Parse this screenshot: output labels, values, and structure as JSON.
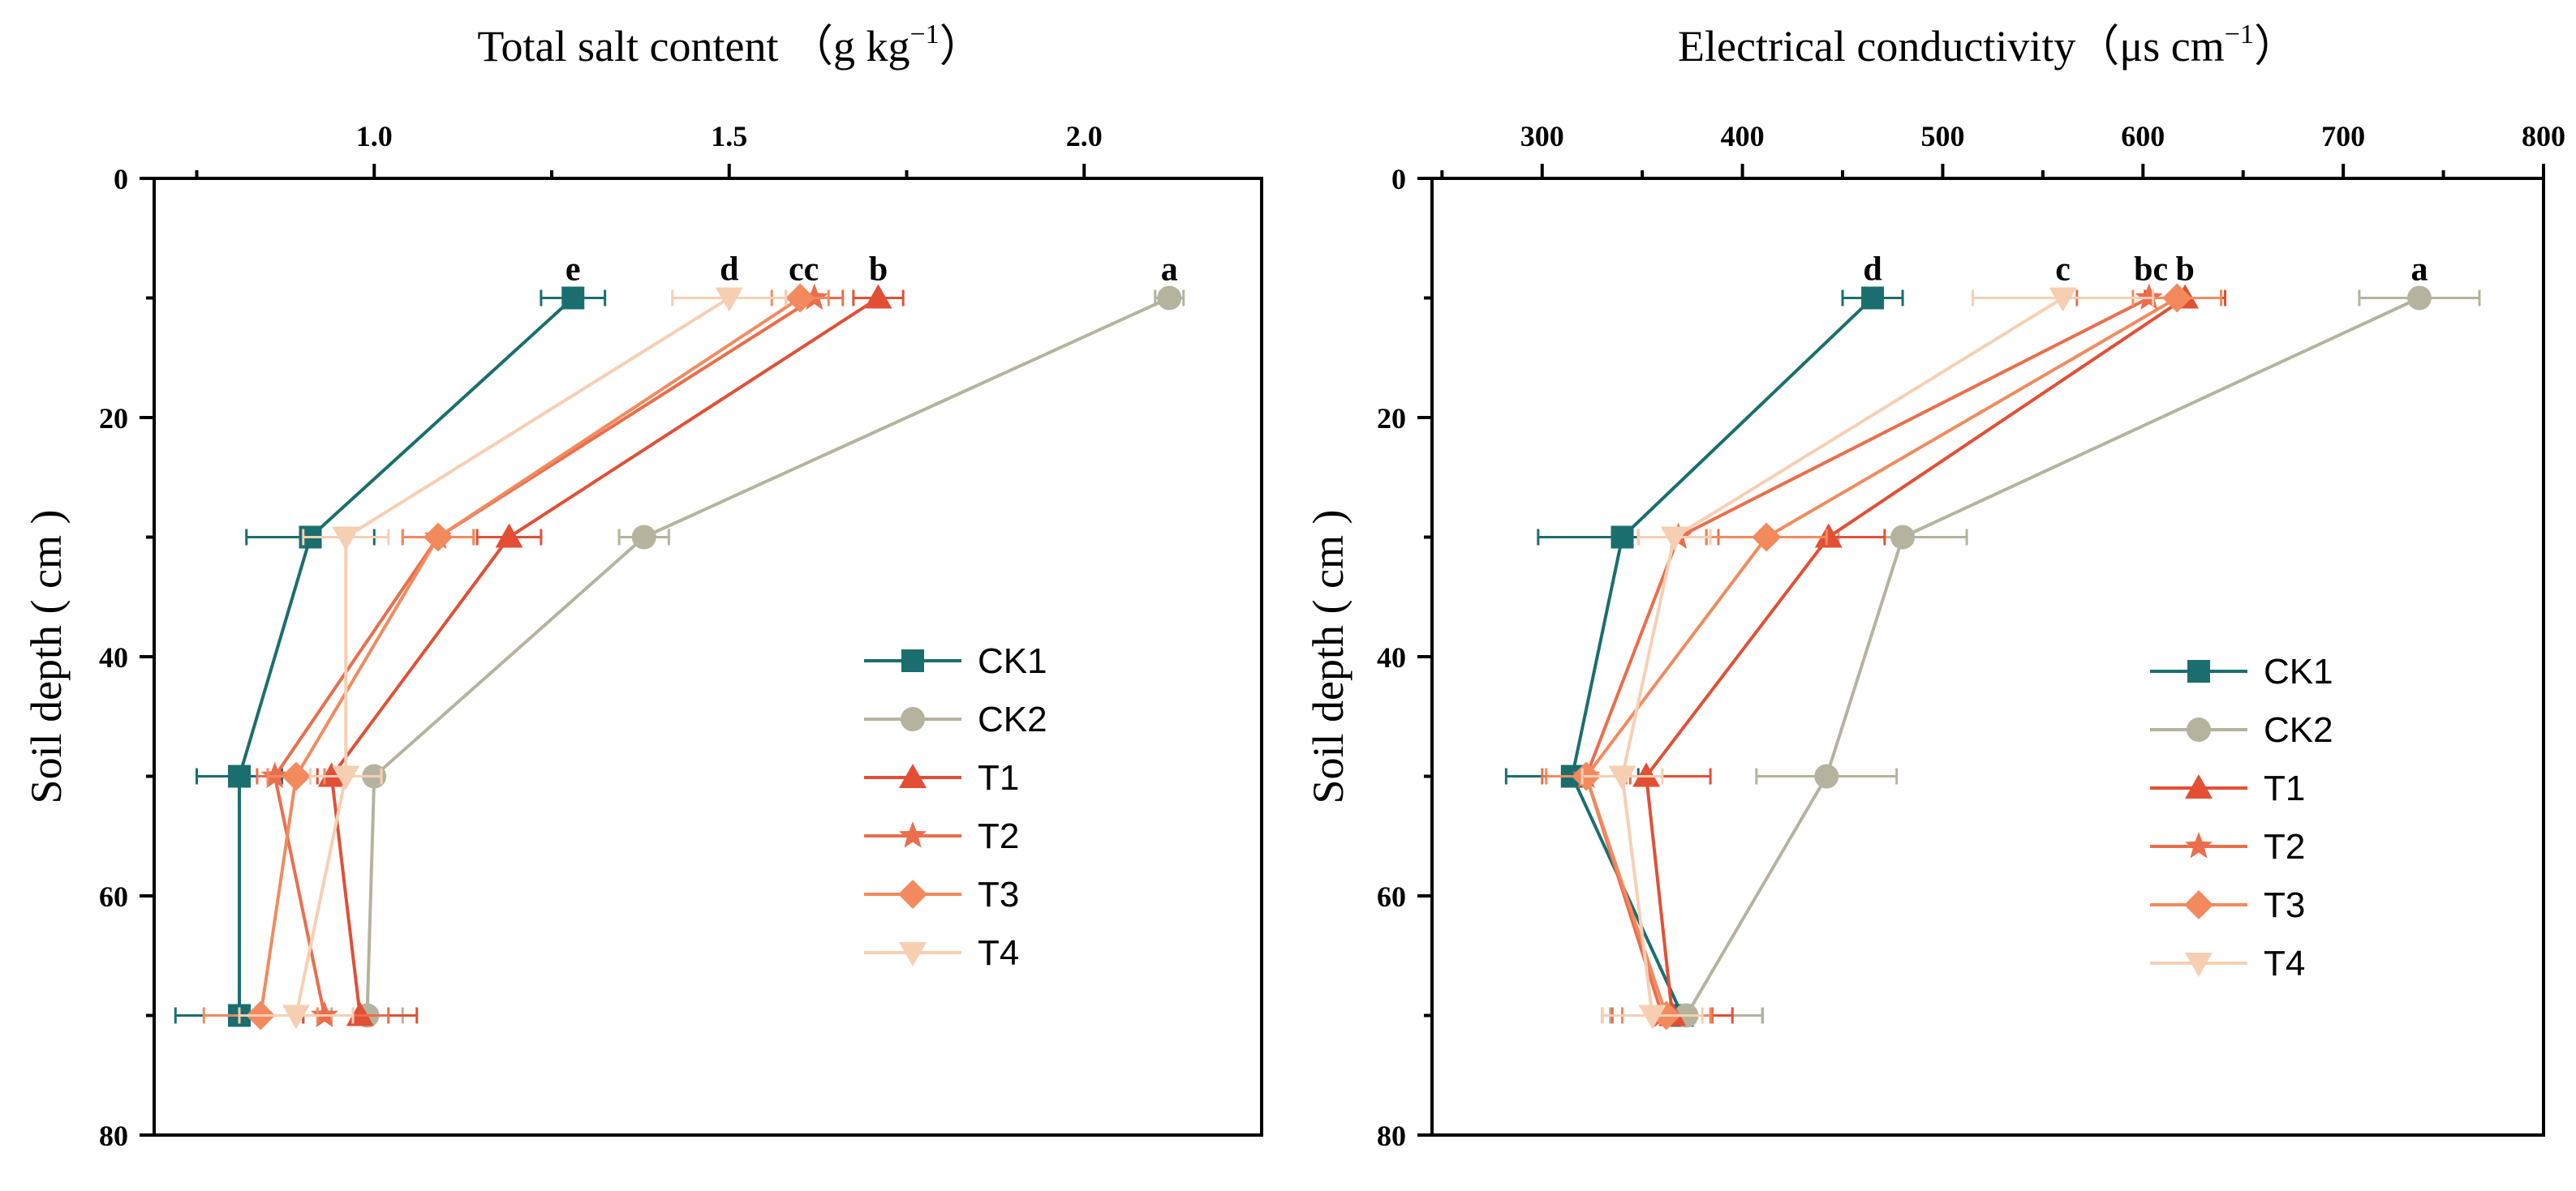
{
  "colors": {
    "CK1": "#1a6e6e",
    "CK2": "#b5b39d",
    "T1": "#e24f35",
    "T2": "#ec6d4b",
    "T3": "#f28a5e",
    "T4": "#f6cfb3"
  },
  "chart_data": [
    {
      "type": "line",
      "title": "Total salt content （g kg",
      "title_sup": "−1",
      "title_end": "）",
      "ylabel": "Soil depth ( cm )",
      "xlim": [
        0.69,
        2.25
      ],
      "ylim": [
        0,
        80
      ],
      "x_major_ticks": [
        1.0,
        1.5,
        2.0
      ],
      "x_tick_labels": [
        "1.0",
        "1.5",
        "2.0"
      ],
      "x_minor_ticks": [
        0.75,
        1.25,
        1.75
      ],
      "y_ticks": [
        0,
        20,
        40,
        60,
        80
      ],
      "y_tick_labels": [
        "0",
        "20",
        "40",
        "60",
        "80"
      ],
      "depths": [
        10,
        30,
        50,
        70
      ],
      "series": [
        {
          "name": "CK1",
          "marker": "square",
          "values": [
            1.28,
            0.91,
            0.81,
            0.81
          ],
          "errors": [
            0.045,
            0.09,
            0.06,
            0.09
          ]
        },
        {
          "name": "CK2",
          "marker": "circle",
          "values": [
            2.12,
            1.38,
            1.0,
            0.99
          ],
          "errors": [
            0.02,
            0.035,
            0.01,
            0.05
          ]
        },
        {
          "name": "T1",
          "marker": "triangle-up",
          "values": [
            1.71,
            1.19,
            0.94,
            0.98
          ],
          "errors": [
            0.035,
            0.045,
            0.02,
            0.08
          ]
        },
        {
          "name": "T2",
          "marker": "star",
          "values": [
            1.62,
            1.09,
            0.86,
            0.93
          ],
          "errors": [
            0.04,
            0.05,
            0.025,
            0.09
          ]
        },
        {
          "name": "T3",
          "marker": "diamond",
          "values": [
            1.6,
            1.09,
            0.89,
            0.84
          ],
          "errors": [
            0.04,
            0.05,
            0.04,
            0.08
          ]
        },
        {
          "name": "T4",
          "marker": "triangle-down",
          "values": [
            1.5,
            0.96,
            0.96,
            0.89
          ],
          "errors": [
            0.08,
            0.06,
            0.05,
            0.08
          ]
        }
      ],
      "significance": [
        {
          "label": "e",
          "x": 1.28
        },
        {
          "label": "d",
          "x": 1.5
        },
        {
          "label": "cc",
          "x": 1.605
        },
        {
          "label": "b",
          "x": 1.71
        },
        {
          "label": "a",
          "x": 2.12
        }
      ],
      "legend_position": "center-right"
    },
    {
      "type": "line",
      "title": "Electrical conductivity（μs cm",
      "title_sup": "−1",
      "title_end": "）",
      "ylabel": "Soil depth ( cm )",
      "xlim": [
        245,
        800
      ],
      "ylim": [
        0,
        80
      ],
      "x_major_ticks": [
        300,
        400,
        500,
        600,
        700,
        800
      ],
      "x_tick_labels": [
        "300",
        "400",
        "500",
        "600",
        "700",
        "800"
      ],
      "x_minor_ticks": [
        250,
        350,
        450,
        550,
        650,
        750
      ],
      "y_ticks": [
        0,
        20,
        40,
        60,
        80
      ],
      "y_tick_labels": [
        "0",
        "20",
        "40",
        "60",
        "80"
      ],
      "depths": [
        10,
        30,
        50,
        70
      ],
      "series": [
        {
          "name": "CK1",
          "marker": "square",
          "values": [
            465,
            340,
            315,
            370
          ],
          "errors": [
            15,
            42,
            33,
            40
          ]
        },
        {
          "name": "CK2",
          "marker": "circle",
          "values": [
            738,
            480,
            442,
            372
          ],
          "errors": [
            30,
            32,
            35,
            38
          ]
        },
        {
          "name": "T1",
          "marker": "triangle-up",
          "values": [
            621,
            443,
            352,
            365
          ],
          "errors": [
            20,
            28,
            32,
            30
          ]
        },
        {
          "name": "T2",
          "marker": "star",
          "values": [
            603,
            368,
            322,
            360
          ],
          "errors": [
            36,
            20,
            22,
            25
          ]
        },
        {
          "name": "T3",
          "marker": "diamond",
          "values": [
            617,
            412,
            322,
            362
          ],
          "errors": [
            22,
            30,
            20,
            22
          ]
        },
        {
          "name": "T4",
          "marker": "triangle-down",
          "values": [
            560,
            366,
            340,
            355
          ],
          "errors": [
            45,
            18,
            20,
            25
          ]
        }
      ],
      "significance": [
        {
          "label": "d",
          "x": 465
        },
        {
          "label": "c",
          "x": 560
        },
        {
          "label": "bc",
          "x": 604
        },
        {
          "label": "b",
          "x": 621
        },
        {
          "label": "a",
          "x": 738
        }
      ],
      "legend_position": "center-right"
    }
  ]
}
